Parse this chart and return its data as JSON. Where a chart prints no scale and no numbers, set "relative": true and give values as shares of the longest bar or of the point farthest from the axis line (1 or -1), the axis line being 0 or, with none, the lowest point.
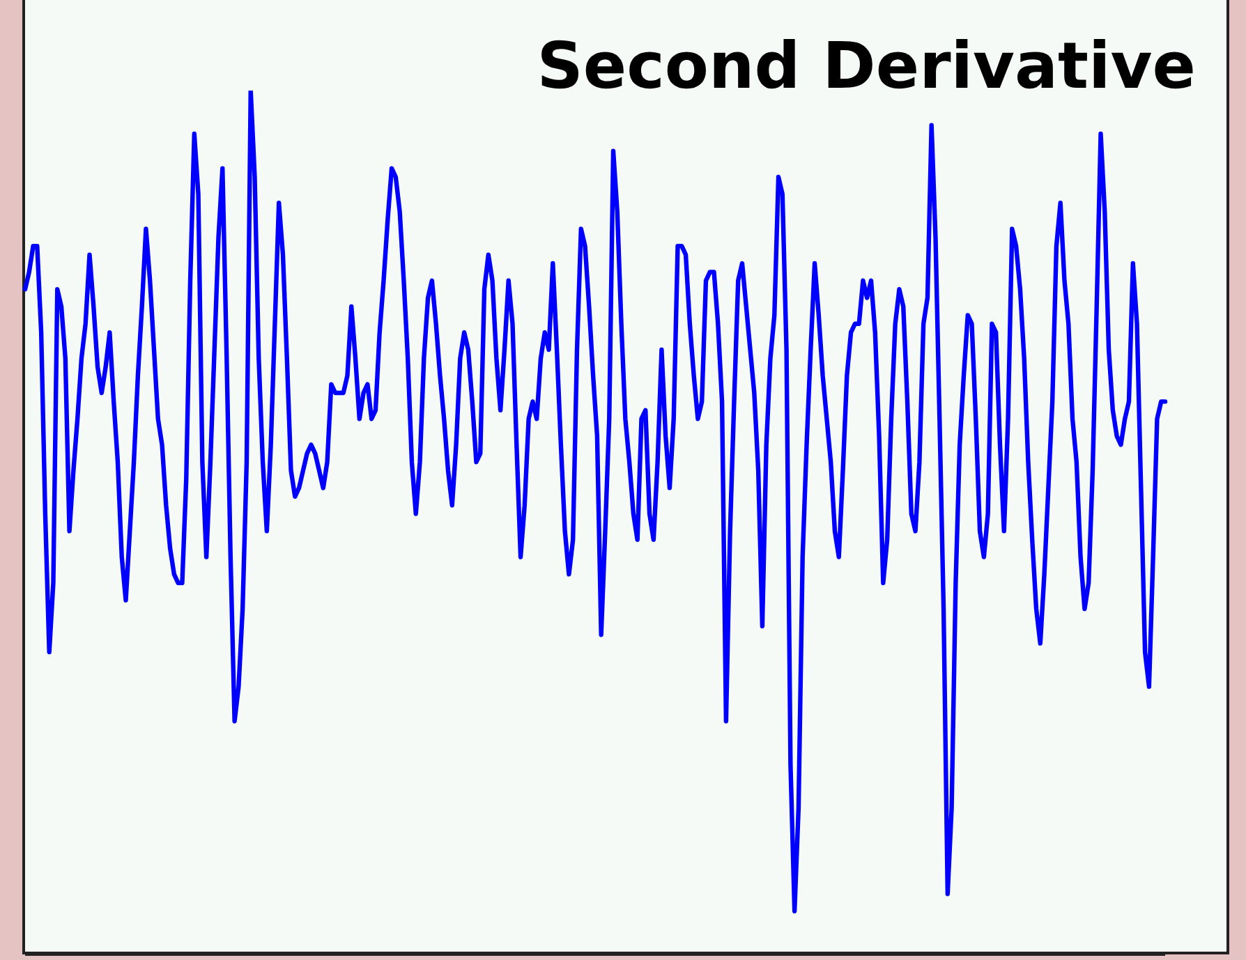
{
  "chart_data": {
    "type": "line",
    "title": "Second Derivative",
    "relative": true,
    "color": "#0000ff",
    "marker": "none",
    "categories": [
      null,
      null,
      null,
      null,
      null,
      null,
      null,
      null,
      null,
      null,
      null,
      null,
      null,
      null,
      null,
      null,
      null,
      null,
      null,
      null,
      null,
      null,
      null,
      null,
      null,
      null,
      null,
      null,
      null,
      null,
      null,
      null,
      null,
      null,
      null,
      null,
      null,
      null,
      null,
      null,
      null,
      null,
      null,
      null,
      null,
      null,
      null,
      null,
      null,
      null,
      null,
      null,
      null,
      null,
      null,
      null,
      null,
      null,
      null,
      null,
      null,
      null,
      null,
      null,
      null,
      null,
      null,
      null,
      null,
      null,
      null,
      null,
      null,
      null,
      null,
      null,
      null,
      null,
      null,
      null,
      null,
      null,
      null,
      null,
      null,
      null,
      null,
      null,
      null,
      null,
      null,
      null,
      null,
      null,
      null,
      null,
      null,
      null,
      null,
      null,
      null,
      null,
      null,
      null,
      null,
      null,
      null,
      null,
      null,
      null,
      null,
      null,
      null,
      null,
      null,
      null,
      null,
      null,
      null,
      null,
      null,
      null,
      null,
      null,
      null,
      null,
      null,
      null,
      null,
      null,
      null,
      null,
      null,
      null,
      null,
      null,
      null,
      null,
      null,
      null,
      null,
      null,
      null,
      null,
      null,
      null,
      null,
      null,
      null,
      null,
      null,
      null,
      null,
      null,
      null,
      null,
      null,
      null,
      null,
      null,
      null,
      null,
      null,
      null,
      null,
      null,
      null,
      null,
      null,
      null,
      null,
      null,
      null,
      null,
      null,
      null,
      null,
      null,
      null,
      null,
      null,
      null,
      null,
      null,
      null,
      null,
      null,
      null,
      null,
      null,
      null,
      null,
      null,
      null,
      null,
      null,
      null,
      null,
      null,
      null,
      null,
      null,
      null,
      null,
      null,
      null,
      null,
      null,
      null,
      null,
      null,
      null,
      null,
      null,
      null,
      null,
      null,
      null,
      null,
      null,
      null,
      null,
      null,
      null,
      null,
      null,
      null,
      null,
      null,
      null,
      null,
      null,
      null,
      null,
      null,
      null,
      null,
      null,
      null,
      null,
      null,
      null,
      null,
      null,
      null,
      null,
      null,
      null,
      null,
      null,
      null,
      null,
      null,
      null,
      null,
      null,
      null,
      null,
      null,
      null,
      null,
      null,
      null,
      null,
      null,
      null,
      null,
      null,
      null,
      null,
      null,
      null,
      null,
      null,
      null,
      null,
      null,
      null,
      null,
      null,
      null,
      null,
      null,
      null
    ],
    "values": [
      0.77,
      0.79,
      0.82,
      0.82,
      0.72,
      0.51,
      0.35,
      0.43,
      0.77,
      0.75,
      0.69,
      0.49,
      0.56,
      0.62,
      0.69,
      0.73,
      0.81,
      0.75,
      0.68,
      0.65,
      0.68,
      0.72,
      0.64,
      0.57,
      0.46,
      0.41,
      0.49,
      0.57,
      0.67,
      0.75,
      0.84,
      0.78,
      0.7,
      0.62,
      0.59,
      0.52,
      0.47,
      0.44,
      0.43,
      0.43,
      0.55,
      0.78,
      0.95,
      0.88,
      0.57,
      0.46,
      0.57,
      0.7,
      0.83,
      0.91,
      0.7,
      0.46,
      0.27,
      0.31,
      0.4,
      0.57,
      1,
      0.9,
      0.69,
      0.57,
      0.49,
      0.59,
      0.73,
      0.87,
      0.81,
      0.69,
      0.56,
      0.53,
      0.54,
      0.56,
      0.58,
      0.59,
      0.58,
      0.56,
      0.54,
      0.57,
      0.66,
      0.65,
      0.65,
      0.65,
      0.67,
      0.75,
      0.69,
      0.62,
      0.65,
      0.66,
      0.62,
      0.63,
      0.72,
      0.78,
      0.85,
      0.91,
      0.9,
      0.86,
      0.78,
      0.69,
      0.57,
      0.51,
      0.57,
      0.69,
      0.76,
      0.78,
      0.73,
      0.67,
      0.62,
      0.56,
      0.52,
      0.59,
      0.69,
      0.72,
      0.7,
      0.64,
      0.57,
      0.58,
      0.77,
      0.81,
      0.78,
      0.69,
      0.63,
      0.7,
      0.78,
      0.73,
      0.59,
      0.46,
      0.52,
      0.62,
      0.64,
      0.62,
      0.69,
      0.72,
      0.7,
      0.8,
      0.7,
      0.59,
      0.49,
      0.44,
      0.48,
      0.7,
      0.84,
      0.82,
      0.75,
      0.67,
      0.6,
      0.37,
      0.49,
      0.62,
      0.93,
      0.86,
      0.73,
      0.62,
      0.57,
      0.51,
      0.48,
      0.62,
      0.63,
      0.51,
      0.48,
      0.57,
      0.7,
      0.6,
      0.54,
      0.62,
      0.82,
      0.82,
      0.81,
      0.73,
      0.67,
      0.62,
      0.64,
      0.78,
      0.79,
      0.79,
      0.73,
      0.64,
      0.27,
      0.49,
      0.64,
      0.78,
      0.8,
      0.75,
      0.7,
      0.65,
      0.56,
      0.38,
      0.59,
      0.69,
      0.74,
      0.9,
      0.88,
      0.7,
      0.22,
      0.05,
      0.17,
      0.46,
      0.59,
      0.7,
      0.8,
      0.74,
      0.67,
      0.62,
      0.57,
      0.49,
      0.46,
      0.56,
      0.67,
      0.72,
      0.73,
      0.73,
      0.78,
      0.76,
      0.78,
      0.72,
      0.6,
      0.43,
      0.48,
      0.62,
      0.73,
      0.77,
      0.75,
      0.64,
      0.51,
      0.49,
      0.57,
      0.73,
      0.76,
      0.96,
      0.83,
      0.62,
      0.4,
      0.07,
      0.17,
      0.43,
      0.59,
      0.67,
      0.74,
      0.73,
      0.62,
      0.49,
      0.46,
      0.51,
      0.73,
      0.72,
      0.59,
      0.49,
      0.62,
      0.84,
      0.82,
      0.77,
      0.69,
      0.57,
      0.48,
      0.4,
      0.36,
      0.44,
      0.54,
      0.64,
      0.82,
      0.87,
      0.78,
      0.73,
      0.62,
      0.57,
      0.46,
      0.4,
      0.43,
      0.56,
      0.75,
      0.95,
      0.86,
      0.7,
      0.63,
      0.6,
      0.59,
      0.62,
      0.64,
      0.8,
      0.73,
      0.54,
      0.35,
      0.31,
      0.46,
      0.62,
      0.64,
      0.64
    ]
  }
}
